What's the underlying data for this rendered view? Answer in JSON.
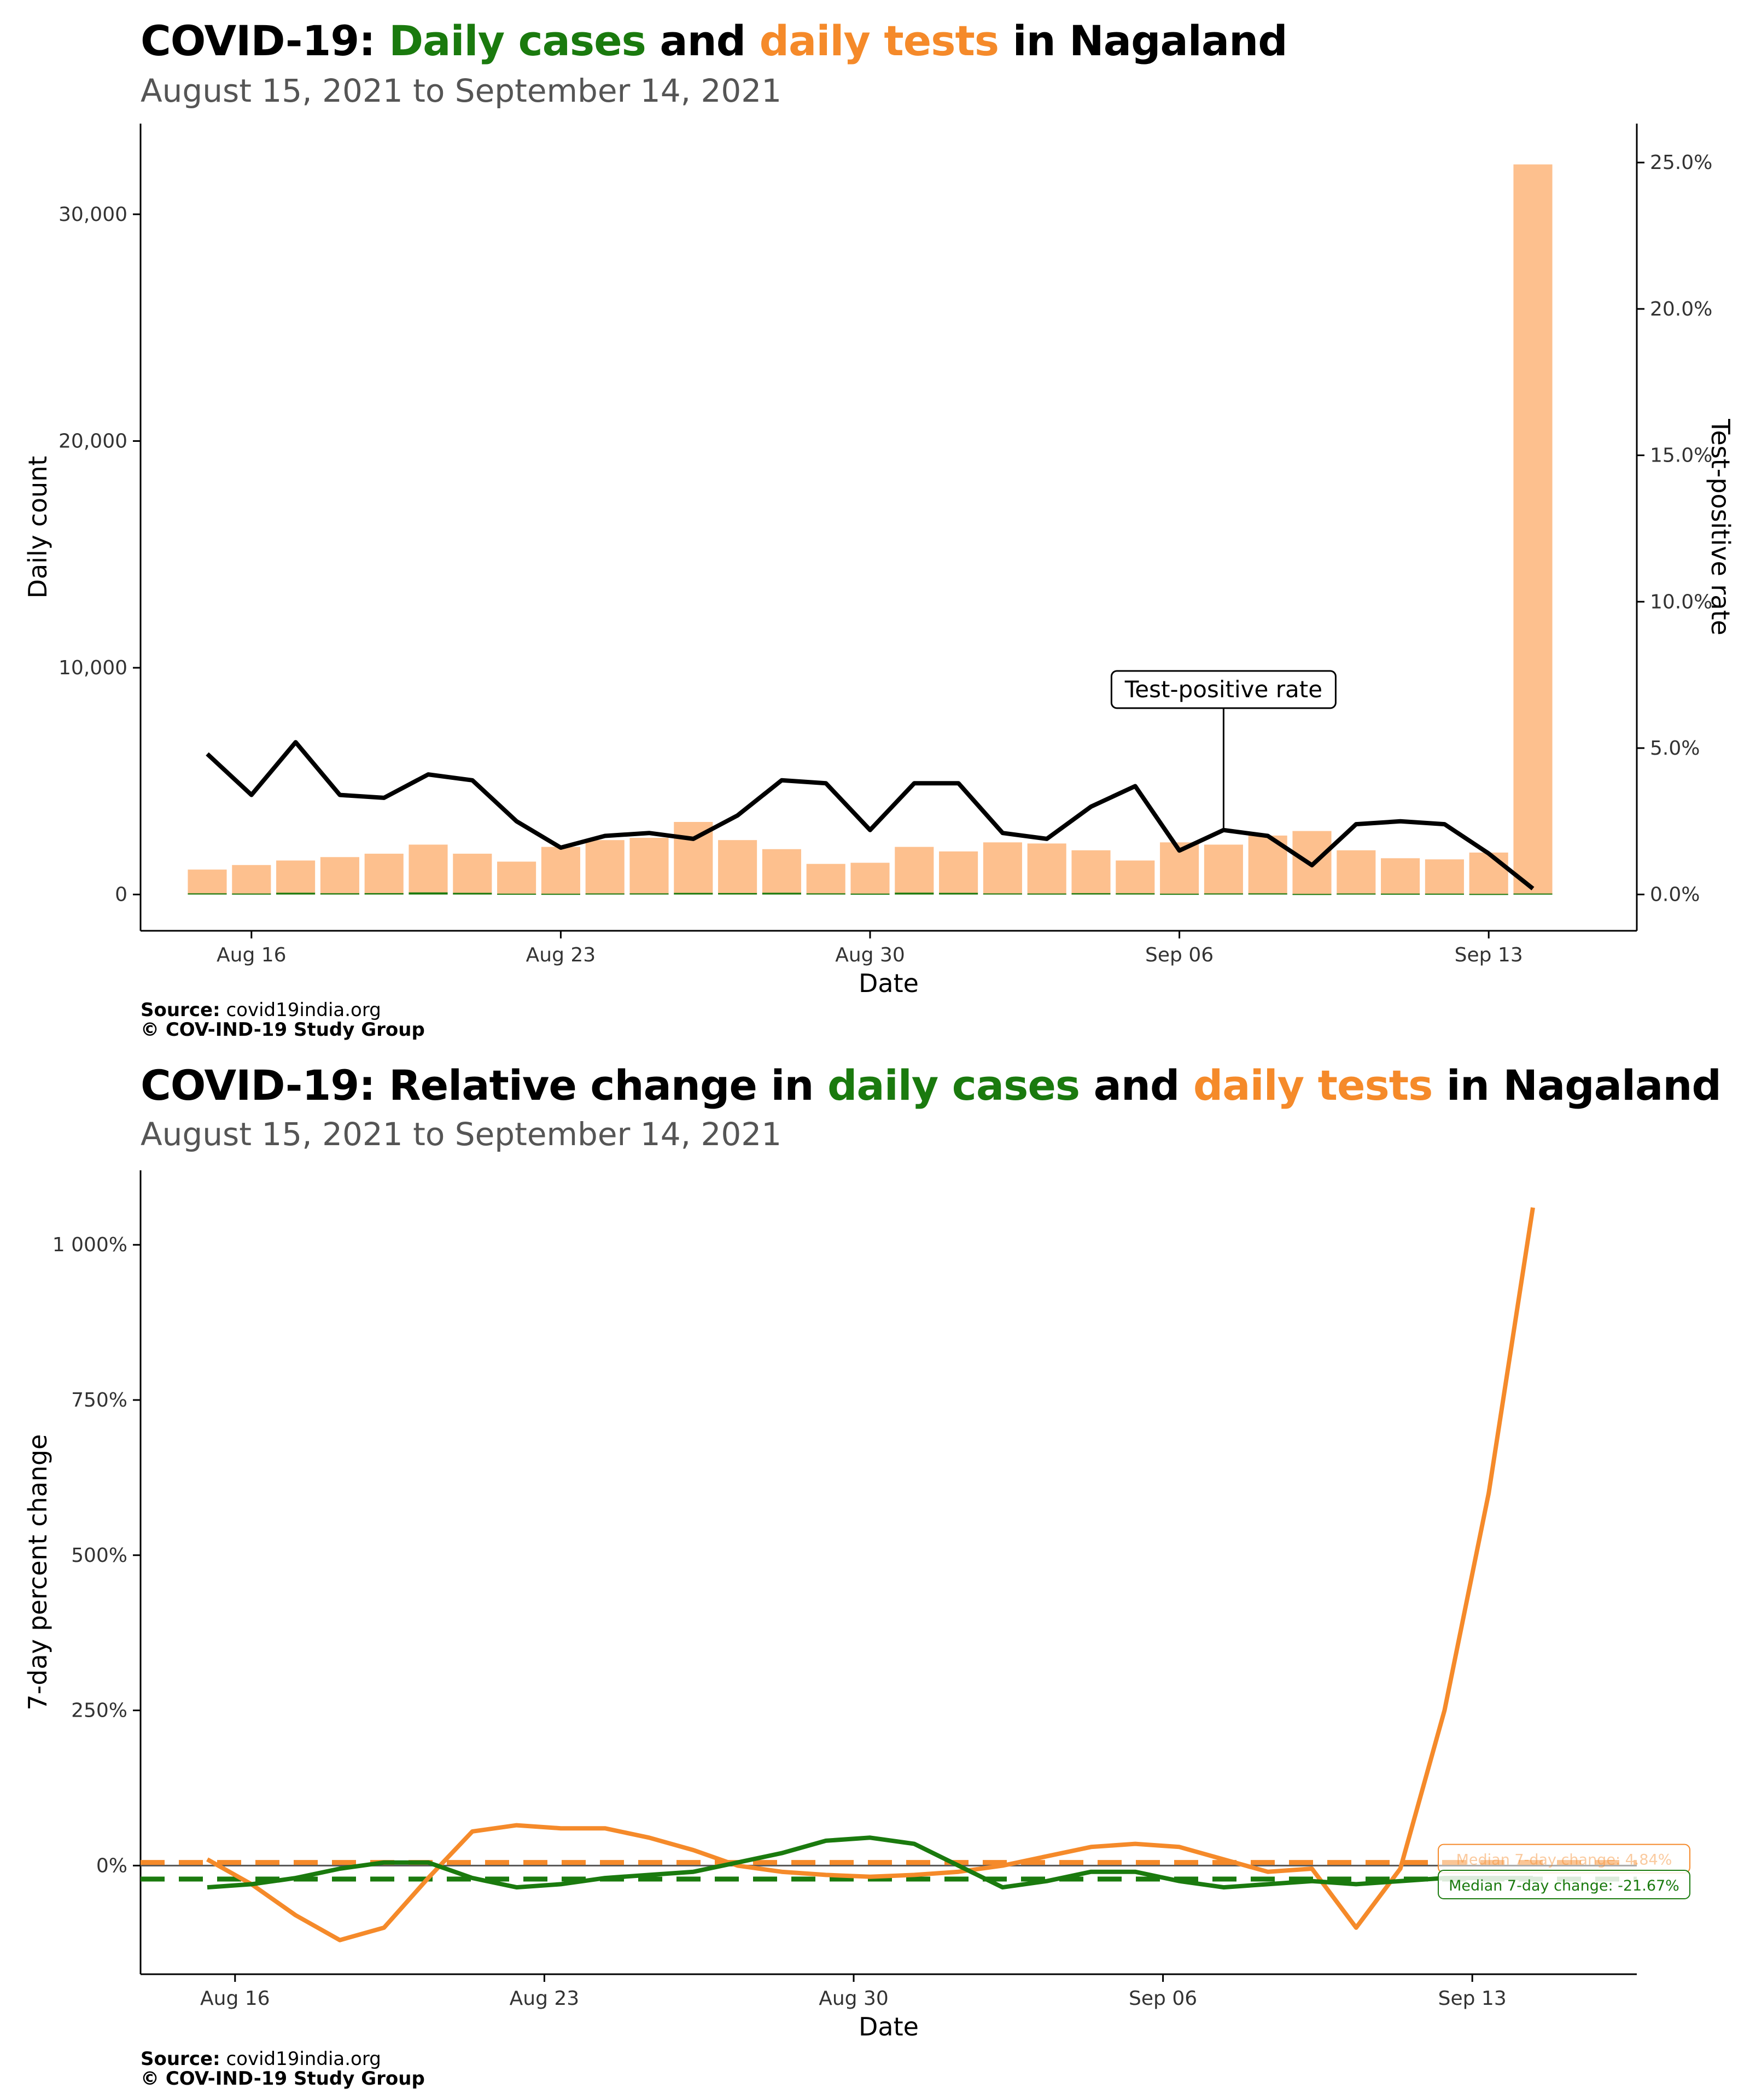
{
  "charts": [
    {
      "title": {
        "prefix": "COVID-19: ",
        "cases": "Daily cases",
        "and": " and ",
        "tests": "daily tests",
        "suffix": " in Nagaland"
      },
      "subtitle": "August 15, 2021 to September 14, 2021",
      "source_label": "Source:",
      "source_value": "covid19india.org",
      "copyright": "© COV-IND-19 Study Group"
    },
    {
      "title": {
        "prefix": "COVID-19: Relative change in ",
        "cases": "daily cases",
        "and": " and ",
        "tests": "daily tests",
        "suffix": " in Nagaland"
      },
      "subtitle": "August 15, 2021 to September 14, 2021",
      "source_label": "Source:",
      "source_value": "covid19india.org",
      "copyright": "© COV-IND-19 Study Group"
    }
  ],
  "colors": {
    "cases": "#1a7a0e",
    "tests_line": "#f58a2a",
    "tests_bar": "#fdc08e",
    "tpr_line": "#000000"
  },
  "chart_data": [
    {
      "type": "bar",
      "x_dates": [
        "2021-08-15",
        "2021-08-16",
        "2021-08-17",
        "2021-08-18",
        "2021-08-19",
        "2021-08-20",
        "2021-08-21",
        "2021-08-22",
        "2021-08-23",
        "2021-08-24",
        "2021-08-25",
        "2021-08-26",
        "2021-08-27",
        "2021-08-28",
        "2021-08-29",
        "2021-08-30",
        "2021-08-31",
        "2021-09-01",
        "2021-09-02",
        "2021-09-03",
        "2021-09-04",
        "2021-09-05",
        "2021-09-06",
        "2021-09-07",
        "2021-09-08",
        "2021-09-09",
        "2021-09-10",
        "2021-09-11",
        "2021-09-12",
        "2021-09-13",
        "2021-09-14"
      ],
      "xlabel": "Date",
      "x_ticks": [
        "Aug 16",
        "Aug 23",
        "Aug 30",
        "Sep 06",
        "Sep 13"
      ],
      "x_tick_dates": [
        "2021-08-16",
        "2021-08-23",
        "2021-08-30",
        "2021-09-06",
        "2021-09-13"
      ],
      "ylabel": "Daily count",
      "ylim": [
        -1600,
        34000
      ],
      "y_ticks": [
        0,
        10000,
        20000,
        30000
      ],
      "y_tick_labels": [
        "0",
        "10,000",
        "20,000",
        "30,000"
      ],
      "y2label": "Test-positive rate",
      "y2lim": [
        -0.0124,
        0.2633
      ],
      "y2_ticks": [
        0,
        0.05,
        0.1,
        0.15,
        0.2,
        0.25
      ],
      "y2_tick_labels": [
        "0.0%",
        "5.0%",
        "10.0%",
        "15.0%",
        "20.0%",
        "25.0%"
      ],
      "series": [
        {
          "name": "daily tests",
          "kind": "bar",
          "values": [
            1100,
            1300,
            1500,
            1650,
            1800,
            2200,
            1800,
            1450,
            2100,
            2400,
            2500,
            3200,
            2400,
            2000,
            1350,
            1400,
            2100,
            1900,
            2300,
            2250,
            1950,
            1500,
            2300,
            2200,
            2600,
            2800,
            1950,
            1600,
            1550,
            1850,
            32200
          ]
        },
        {
          "name": "daily cases",
          "kind": "bar",
          "values": [
            53,
            44,
            78,
            56,
            61,
            92,
            74,
            37,
            34,
            48,
            51,
            71,
            66,
            77,
            52,
            40,
            81,
            73,
            49,
            45,
            59,
            55,
            35,
            49,
            52,
            27,
            46,
            40,
            39,
            28,
            44
          ]
        },
        {
          "name": "Test-positive rate",
          "kind": "line",
          "values": [
            0.048,
            0.034,
            0.052,
            0.034,
            0.033,
            0.041,
            0.039,
            0.025,
            0.016,
            0.02,
            0.021,
            0.019,
            0.027,
            0.039,
            0.038,
            0.022,
            0.038,
            0.038,
            0.021,
            0.019,
            0.03,
            0.037,
            0.015,
            0.022,
            0.02,
            0.01,
            0.024,
            0.025,
            0.024,
            0.014,
            0.002
          ]
        }
      ],
      "annotation": {
        "text": "Test-positive rate",
        "date": "2021-09-07",
        "value": 0.07
      }
    },
    {
      "type": "line",
      "x_dates": [
        "2021-08-15",
        "2021-08-16",
        "2021-08-17",
        "2021-08-18",
        "2021-08-19",
        "2021-08-20",
        "2021-08-21",
        "2021-08-22",
        "2021-08-23",
        "2021-08-24",
        "2021-08-25",
        "2021-08-26",
        "2021-08-27",
        "2021-08-28",
        "2021-08-29",
        "2021-08-30",
        "2021-08-31",
        "2021-09-01",
        "2021-09-02",
        "2021-09-03",
        "2021-09-04",
        "2021-09-05",
        "2021-09-06",
        "2021-09-07",
        "2021-09-08",
        "2021-09-09",
        "2021-09-10",
        "2021-09-11",
        "2021-09-12",
        "2021-09-13",
        "2021-09-14"
      ],
      "xlabel": "Date",
      "x_ticks": [
        "Aug 16",
        "Aug 23",
        "Aug 30",
        "Sep 06",
        "Sep 13"
      ],
      "x_tick_dates": [
        "2021-08-16",
        "2021-08-23",
        "2021-08-30",
        "2021-09-06",
        "2021-09-13"
      ],
      "ylabel": "7-day percent change",
      "ylim": [
        -175,
        1120
      ],
      "y_ticks": [
        0,
        250,
        500,
        750,
        1000
      ],
      "y_tick_labels": [
        "0%",
        "250%",
        "500%",
        "750%",
        "1 000%"
      ],
      "series": [
        {
          "name": "daily tests",
          "values": [
            10,
            -30,
            -80,
            -120,
            -100,
            -20,
            55,
            65,
            60,
            60,
            45,
            25,
            0,
            -10,
            -15,
            -18,
            -15,
            -10,
            0,
            15,
            30,
            35,
            30,
            10,
            -10,
            -5,
            -100,
            -5,
            250,
            600,
            1060
          ]
        },
        {
          "name": "daily cases",
          "values": [
            -35,
            -30,
            -20,
            -5,
            5,
            5,
            -20,
            -35,
            -30,
            -20,
            -15,
            -10,
            5,
            20,
            40,
            45,
            35,
            0,
            -35,
            -25,
            -10,
            -10,
            -25,
            -35,
            -30,
            -25,
            -30,
            -25,
            -20,
            -20,
            -20
          ]
        }
      ],
      "reference_lines": [
        {
          "series": "daily tests",
          "value": 5,
          "label": "Median 7-day change: 4.84%"
        },
        {
          "series": "daily cases",
          "value": -21.67,
          "label": "Median 7-day change: -21.67%"
        }
      ]
    }
  ]
}
